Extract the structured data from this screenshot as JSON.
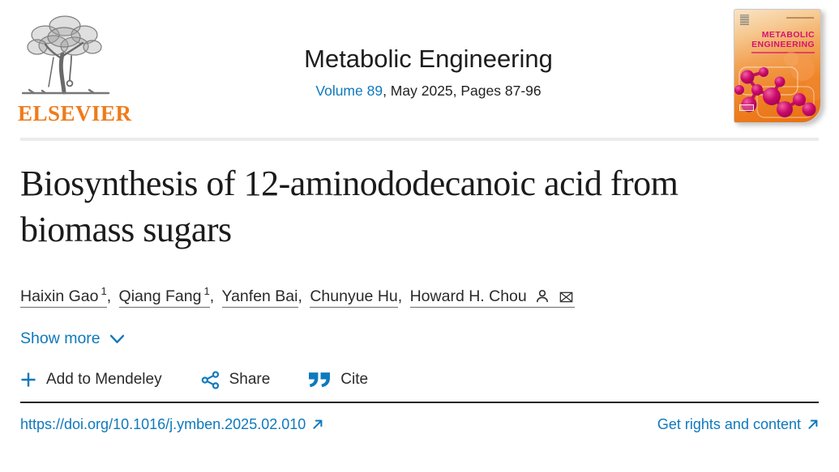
{
  "colors": {
    "link_blue": "#0e79bd",
    "elsevier_orange": "#ef7b1a",
    "cover_magenta": "#d5126e"
  },
  "header": {
    "elsevier_wordmark": "ELSEVIER",
    "journal_title": "Metabolic Engineering",
    "volume_link": "Volume 89",
    "issue_suffix": ", May 2025, Pages 87-96",
    "cover_title_line1": "METABOLIC",
    "cover_title_line2": "ENGINEERING"
  },
  "article": {
    "title": "Biosynthesis of 12-aminododecanoic acid from biomass sugars",
    "authors": [
      {
        "name": "Haixin Gao",
        "sup": "1"
      },
      {
        "name": "Qiang Fang",
        "sup": "1"
      },
      {
        "name": "Yanfen Bai",
        "sup": ""
      },
      {
        "name": "Chunyue Hu",
        "sup": ""
      },
      {
        "name": "Howard H. Chou",
        "sup": ""
      }
    ],
    "show_more_label": "Show more"
  },
  "actions": {
    "add_to_mendeley": "Add to Mendeley",
    "share": "Share",
    "cite": "Cite"
  },
  "footer": {
    "doi": "https://doi.org/10.1016/j.ymben.2025.02.010",
    "rights": "Get rights and content"
  }
}
